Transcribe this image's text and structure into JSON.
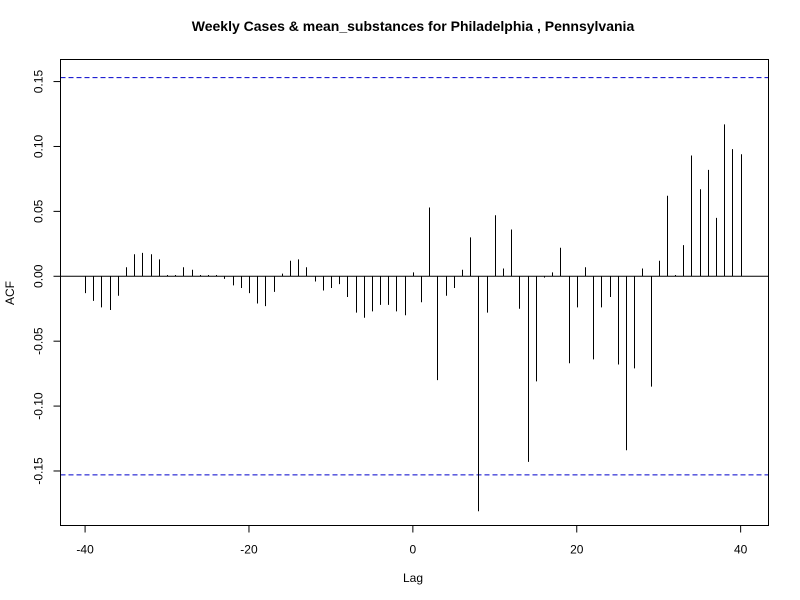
{
  "chart_data": {
    "type": "bar",
    "title": "Weekly Cases & mean_substances for Philadelphia , Pennsylvania",
    "xlabel": "Lag",
    "ylabel": "ACF",
    "xlim": [
      -43,
      43.4
    ],
    "ylim": [
      -0.192,
      0.167
    ],
    "x_ticks": [
      -40,
      -20,
      0,
      20,
      40
    ],
    "x_tick_labels": [
      "-40",
      "-20",
      "0",
      "20",
      "40"
    ],
    "y_ticks": [
      -0.15,
      -0.1,
      -0.05,
      0.0,
      0.05,
      0.1,
      0.15
    ],
    "y_tick_labels": [
      "-0.15",
      "-0.10",
      "-0.05",
      "0.00",
      "0.05",
      "0.10",
      "0.15"
    ],
    "confidence_limit": 0.153,
    "confidence_color": "#0000cc",
    "bar_color": "#000000",
    "grid": false,
    "lags": [
      -40,
      -39,
      -38,
      -37,
      -36,
      -35,
      -34,
      -33,
      -32,
      -31,
      -30,
      -29,
      -28,
      -27,
      -26,
      -25,
      -24,
      -23,
      -22,
      -21,
      -20,
      -19,
      -18,
      -17,
      -16,
      -15,
      -14,
      -13,
      -12,
      -11,
      -10,
      -9,
      -8,
      -7,
      -6,
      -5,
      -4,
      -3,
      -2,
      -1,
      0,
      1,
      2,
      3,
      4,
      5,
      6,
      7,
      8,
      9,
      10,
      11,
      12,
      13,
      14,
      15,
      16,
      17,
      18,
      19,
      20,
      21,
      22,
      23,
      24,
      25,
      26,
      27,
      28,
      29,
      30,
      31,
      32,
      33,
      34,
      35,
      36,
      37,
      38,
      39,
      40
    ],
    "values": [
      -0.013,
      -0.019,
      -0.024,
      -0.026,
      -0.015,
      0.007,
      0.017,
      0.018,
      0.017,
      0.013,
      0.001,
      0.001,
      0.007,
      0.005,
      0.001,
      0.001,
      0.001,
      -0.002,
      -0.007,
      -0.009,
      -0.013,
      -0.021,
      -0.023,
      -0.012,
      0.002,
      0.012,
      0.013,
      0.007,
      -0.004,
      -0.011,
      -0.009,
      -0.006,
      -0.016,
      -0.028,
      -0.032,
      -0.027,
      -0.022,
      -0.022,
      -0.027,
      -0.03,
      0.003,
      -0.02,
      0.053,
      -0.08,
      -0.015,
      -0.009,
      0.005,
      0.03,
      -0.181,
      -0.028,
      0.047,
      0.006,
      0.036,
      -0.025,
      -0.143,
      -0.081,
      -0.001,
      0.003,
      0.022,
      -0.067,
      -0.024,
      0.007,
      -0.064,
      -0.024,
      -0.016,
      -0.068,
      -0.134,
      -0.071,
      0.006,
      -0.085,
      0.012,
      0.062,
      0.001,
      0.024,
      0.093,
      0.067,
      0.082,
      0.045,
      0.117,
      0.098,
      0.094
    ]
  }
}
